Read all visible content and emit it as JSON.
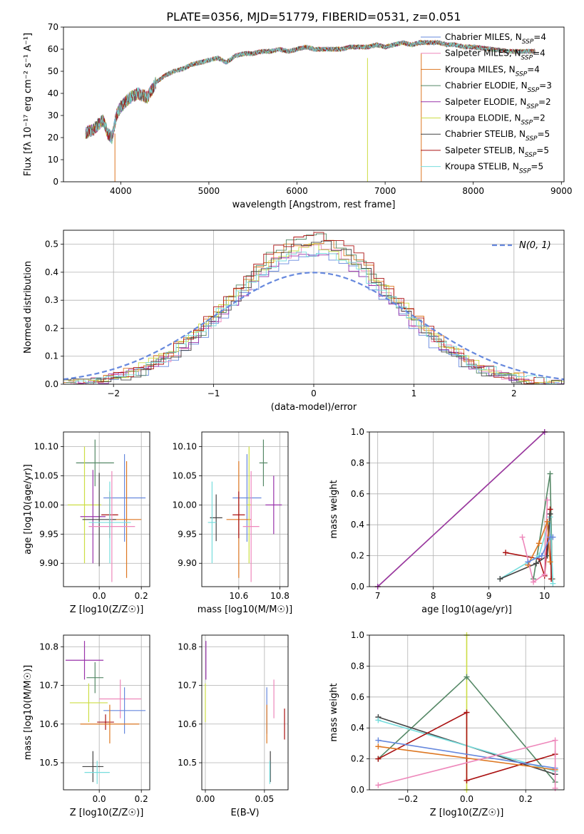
{
  "figure_title": "PLATE=0356, MJD=51779, FIBERID=0531, z=0.051",
  "colors": {
    "Chabrier MILES": "#6688dd",
    "Salpeter MILES": "#ee88bb",
    "Kroupa MILES": "#dd7722",
    "Chabrier ELODIE": "#558866",
    "Salpeter ELODIE": "#9933aa",
    "Kroupa ELODIE": "#ccdd44",
    "Chabrier STELIB": "#444444",
    "Salpeter STELIB": "#aa1111",
    "Kroupa STELIB": "#77dddd",
    "normal_curve": "#6688dd",
    "grid": "#b0b0b0"
  },
  "chart_data": [
    {
      "id": "spectrum",
      "type": "line",
      "title": "PLATE=0356, MJD=51779, FIBERID=0531, z=0.051",
      "xlabel": "wavelength [Angstrom, rest frame]",
      "ylabel": "Flux [fλ 10⁻¹⁷ erg cm⁻² s⁻¹ A⁻¹]",
      "xlim": [
        3350,
        9030
      ],
      "ylim": [
        0,
        70
      ],
      "xticks": [
        4000,
        5000,
        6000,
        7000,
        8000,
        9000
      ],
      "yticks": [
        0,
        10,
        20,
        30,
        40,
        50,
        60,
        70
      ],
      "grid": false,
      "legend_position": "right",
      "legend": [
        {
          "model": "Chabrier MILES",
          "library": "MILES",
          "imf": "Chabrier",
          "label": "Chabrier MILES, N",
          "sub": "SSP",
          "suffix": "=4"
        },
        {
          "model": "Salpeter MILES",
          "library": "MILES",
          "imf": "Salpeter",
          "label": "Salpeter MILES, N",
          "sub": "SSP",
          "suffix": "=4"
        },
        {
          "model": "Kroupa MILES",
          "library": "MILES",
          "imf": "Kroupa",
          "label": "Kroupa MILES, N",
          "sub": "SSP",
          "suffix": "=4"
        },
        {
          "model": "Chabrier ELODIE",
          "library": "ELODIE",
          "imf": "Chabrier",
          "label": "Chabrier ELODIE, N",
          "sub": "SSP",
          "suffix": "=3"
        },
        {
          "model": "Salpeter ELODIE",
          "library": "ELODIE",
          "imf": "Salpeter",
          "label": "Salpeter ELODIE, N",
          "sub": "SSP",
          "suffix": "=2"
        },
        {
          "model": "Kroupa ELODIE",
          "library": "ELODIE",
          "imf": "Kroupa",
          "label": "Kroupa ELODIE, N",
          "sub": "SSP",
          "suffix": "=2"
        },
        {
          "model": "Chabrier STELIB",
          "library": "STELIB",
          "imf": "Chabrier",
          "label": "Chabrier STELIB, N",
          "sub": "SSP",
          "suffix": "=5"
        },
        {
          "model": "Salpeter STELIB",
          "library": "STELIB",
          "imf": "Salpeter",
          "label": "Salpeter STELIB, N",
          "sub": "SSP",
          "suffix": "=5"
        },
        {
          "model": "Kroupa STELIB",
          "library": "STELIB",
          "imf": "Kroupa",
          "label": "Kroupa STELIB, N",
          "sub": "SSP",
          "suffix": "=5"
        }
      ],
      "envelope": [
        [
          3600,
          22
        ],
        [
          3700,
          24
        ],
        [
          3800,
          28
        ],
        [
          3850,
          22
        ],
        [
          3900,
          20
        ],
        [
          3950,
          30
        ],
        [
          4000,
          34
        ],
        [
          4100,
          38
        ],
        [
          4200,
          40
        ],
        [
          4300,
          38
        ],
        [
          4400,
          45
        ],
        [
          4500,
          48
        ],
        [
          4600,
          50
        ],
        [
          4700,
          51
        ],
        [
          4800,
          53
        ],
        [
          4900,
          54
        ],
        [
          5000,
          55
        ],
        [
          5100,
          56
        ],
        [
          5200,
          54
        ],
        [
          5300,
          57
        ],
        [
          5400,
          58
        ],
        [
          5500,
          58
        ],
        [
          5600,
          59
        ],
        [
          5700,
          59
        ],
        [
          5800,
          60
        ],
        [
          5900,
          59
        ],
        [
          6000,
          60
        ],
        [
          6100,
          61
        ],
        [
          6200,
          60
        ],
        [
          6300,
          60
        ],
        [
          6400,
          60
        ],
        [
          6500,
          60
        ],
        [
          6600,
          61
        ],
        [
          6700,
          61
        ],
        [
          6800,
          61
        ],
        [
          6900,
          62
        ],
        [
          7000,
          61
        ],
        [
          7100,
          62
        ],
        [
          7200,
          63
        ],
        [
          7300,
          62
        ],
        [
          7400,
          63
        ],
        [
          7500,
          63
        ],
        [
          7600,
          63
        ],
        [
          7700,
          62
        ],
        [
          7800,
          62
        ],
        [
          7900,
          61
        ],
        [
          8000,
          61
        ],
        [
          8200,
          60
        ],
        [
          8400,
          59
        ],
        [
          8600,
          59
        ],
        [
          8700,
          59
        ]
      ],
      "absorption_dips": [
        {
          "x": 3934,
          "y": 0
        },
        {
          "x": 6800,
          "y": 0
        },
        {
          "x": 7410,
          "y": 0
        }
      ]
    },
    {
      "id": "residuals",
      "type": "step",
      "xlabel": "(data-model)/error",
      "ylabel": "Normed distribution",
      "xlim": [
        -2.5,
        2.5
      ],
      "ylim": [
        0,
        0.55
      ],
      "xticks": [
        -2,
        -1,
        0,
        1,
        2
      ],
      "yticks": [
        0.0,
        0.1,
        0.2,
        0.3,
        0.4,
        0.5
      ],
      "grid": true,
      "legend_position": "top-right",
      "normal_label": "N(0, 1)",
      "bin_width": 0.1,
      "amplitude_range": [
        0.47,
        0.53
      ]
    },
    {
      "id": "age-vs-Z",
      "type": "scatter",
      "xlabel": "Z [log10(Z/Z☉)]",
      "ylabel": "age  [log10(age/yr)]",
      "xlim": [
        -0.17,
        0.24
      ],
      "ylim": [
        9.86,
        10.125
      ],
      "xticks": [
        0.0,
        0.2
      ],
      "yticks": [
        9.9,
        9.95,
        10.0,
        10.05,
        10.1
      ],
      "grid": true,
      "points": [
        {
          "model": "Chabrier ELODIE",
          "x": -0.02,
          "xerr": 0.09,
          "y": 10.072,
          "yerr": 0.04
        },
        {
          "model": "Chabrier MILES",
          "x": 0.12,
          "xerr": 0.1,
          "y": 10.012,
          "yerr": 0.075
        },
        {
          "model": "Kroupa MILES",
          "x": 0.13,
          "xerr": 0.07,
          "y": 9.975,
          "yerr": 0.1
        },
        {
          "model": "Kroupa ELODIE",
          "x": -0.07,
          "xerr": 0.08,
          "y": 10.0,
          "yerr": 0.1
        },
        {
          "model": "Salpeter ELODIE",
          "x": -0.03,
          "xerr": 0.06,
          "y": 9.98,
          "yerr": 0.08
        },
        {
          "model": "Salpeter STELIB",
          "x": 0.05,
          "xerr": 0.04,
          "y": 9.983,
          "yerr": 0.04
        },
        {
          "model": "Chabrier STELIB",
          "x": 0.0,
          "xerr": 0.08,
          "y": 9.975,
          "yerr": 0.08
        },
        {
          "model": "Salpeter MILES",
          "x": 0.06,
          "xerr": 0.11,
          "y": 9.963,
          "yerr": 0.095
        },
        {
          "model": "Kroupa STELIB",
          "x": 0.05,
          "xerr": 0.1,
          "y": 9.97,
          "yerr": 0.07
        }
      ]
    },
    {
      "id": "age-vs-mass",
      "type": "scatter",
      "xlabel": "mass [log10(M/M☉)]",
      "ylabel": "",
      "xlim": [
        10.42,
        10.84
      ],
      "ylim": [
        9.86,
        10.125
      ],
      "xticks": [
        10.6,
        10.8
      ],
      "yticks": [
        9.9,
        9.95,
        10.0,
        10.05,
        10.1
      ],
      "grid": true,
      "points": [
        {
          "model": "Chabrier ELODIE",
          "x": 10.72,
          "xerr": 0.02,
          "y": 10.072,
          "yerr": 0.04
        },
        {
          "model": "Chabrier MILES",
          "x": 10.64,
          "xerr": 0.07,
          "y": 10.012,
          "yerr": 0.075
        },
        {
          "model": "Kroupa MILES",
          "x": 10.6,
          "xerr": 0.06,
          "y": 9.975,
          "yerr": 0.1
        },
        {
          "model": "Kroupa ELODIE",
          "x": 10.65,
          "xerr": 0.01,
          "y": 10.0,
          "yerr": 0.1
        },
        {
          "model": "Salpeter ELODIE",
          "x": 10.77,
          "xerr": 0.04,
          "y": 10.0,
          "yerr": 0.05
        },
        {
          "model": "Salpeter STELIB",
          "x": 10.6,
          "xerr": 0.03,
          "y": 9.983,
          "yerr": 0.04
        },
        {
          "model": "Chabrier STELIB",
          "x": 10.49,
          "xerr": 0.03,
          "y": 9.978,
          "yerr": 0.04
        },
        {
          "model": "Salpeter MILES",
          "x": 10.66,
          "xerr": 0.04,
          "y": 9.963,
          "yerr": 0.095
        },
        {
          "model": "Kroupa STELIB",
          "x": 10.47,
          "xerr": 0.02,
          "y": 9.97,
          "yerr": 0.07
        }
      ]
    },
    {
      "id": "mass-weight-vs-age",
      "type": "line",
      "xlabel": "age  [log10(age/yr)]",
      "ylabel": "mass weight",
      "xlim": [
        6.85,
        10.35
      ],
      "ylim": [
        0,
        1.0
      ],
      "xticks": [
        7,
        8,
        9,
        10
      ],
      "yticks": [
        0.0,
        0.2,
        0.4,
        0.6,
        0.8,
        1.0
      ],
      "grid": true,
      "series": [
        {
          "model": "Kroupa ELODIE",
          "x": [
            7.0,
            10.0
          ],
          "y": [
            0.0,
            1.0
          ]
        },
        {
          "model": "Salpeter ELODIE",
          "x": [
            7.0,
            10.0
          ],
          "y": [
            0.0,
            1.0
          ]
        },
        {
          "model": "Chabrier ELODIE",
          "x": [
            9.8,
            10.1,
            10.14
          ],
          "y": [
            0.05,
            0.73,
            0.05
          ]
        },
        {
          "model": "Salpeter STELIB",
          "x": [
            9.3,
            9.9,
            10.0,
            10.1,
            10.12
          ],
          "y": [
            0.22,
            0.18,
            0.07,
            0.5,
            0.05
          ]
        },
        {
          "model": "Kroupa STELIB",
          "x": [
            9.2,
            9.9,
            10.1,
            10.15
          ],
          "y": [
            0.05,
            0.2,
            0.45,
            0.02
          ]
        },
        {
          "model": "Chabrier STELIB",
          "x": [
            9.2,
            9.85,
            10.05,
            10.1
          ],
          "y": [
            0.05,
            0.15,
            0.2,
            0.47
          ]
        },
        {
          "model": "Salpeter MILES",
          "x": [
            9.6,
            9.8,
            10.0,
            10.05
          ],
          "y": [
            0.32,
            0.03,
            0.08,
            0.56
          ]
        },
        {
          "model": "Kroupa MILES",
          "x": [
            9.7,
            9.9,
            10.05,
            10.1
          ],
          "y": [
            0.14,
            0.28,
            0.42,
            0.16
          ]
        },
        {
          "model": "Chabrier MILES",
          "x": [
            9.7,
            9.95,
            10.1,
            10.15
          ],
          "y": [
            0.16,
            0.2,
            0.32,
            0.32
          ]
        }
      ]
    },
    {
      "id": "mass-vs-Z",
      "type": "scatter",
      "xlabel": "Z [log10(Z/Z☉)]",
      "ylabel": "mass [log10(M/M☉)]",
      "xlim": [
        -0.17,
        0.24
      ],
      "ylim": [
        10.43,
        10.83
      ],
      "xticks": [
        0.0,
        0.2
      ],
      "yticks": [
        10.5,
        10.6,
        10.7,
        10.8
      ],
      "grid": true,
      "points": [
        {
          "model": "Salpeter ELODIE",
          "x": -0.07,
          "xerr": 0.09,
          "y": 10.765,
          "yerr": 0.05
        },
        {
          "model": "Chabrier ELODIE",
          "x": -0.02,
          "xerr": 0.04,
          "y": 10.72,
          "yerr": 0.04
        },
        {
          "model": "Salpeter MILES",
          "x": 0.1,
          "xerr": 0.1,
          "y": 10.665,
          "yerr": 0.05
        },
        {
          "model": "Kroupa ELODIE",
          "x": -0.05,
          "xerr": 0.09,
          "y": 10.655,
          "yerr": 0.05
        },
        {
          "model": "Chabrier MILES",
          "x": 0.12,
          "xerr": 0.1,
          "y": 10.635,
          "yerr": 0.06
        },
        {
          "model": "Salpeter STELIB",
          "x": 0.03,
          "xerr": 0.04,
          "y": 10.605,
          "yerr": 0.02
        },
        {
          "model": "Kroupa MILES",
          "x": 0.05,
          "xerr": 0.14,
          "y": 10.6,
          "yerr": 0.05
        },
        {
          "model": "Chabrier STELIB",
          "x": -0.03,
          "xerr": 0.05,
          "y": 10.49,
          "yerr": 0.04
        },
        {
          "model": "Kroupa STELIB",
          "x": -0.01,
          "xerr": 0.06,
          "y": 10.475,
          "yerr": 0.03
        }
      ]
    },
    {
      "id": "mass-vs-EBV",
      "type": "scatter",
      "xlabel": "E(B-V)",
      "ylabel": "",
      "xlim": [
        -0.003,
        0.07
      ],
      "ylim": [
        10.43,
        10.83
      ],
      "xticks": [
        0.0,
        0.05
      ],
      "yticks": [
        10.5,
        10.6,
        10.7,
        10.8
      ],
      "grid": true,
      "points": [
        {
          "model": "Salpeter ELODIE",
          "x": 0.0005,
          "y": 10.765,
          "yerr": 0.05
        },
        {
          "model": "Kroupa ELODIE",
          "x": 0.0,
          "y": 10.655,
          "yerr": 0.05
        },
        {
          "model": "Salpeter MILES",
          "x": 0.058,
          "y": 10.665,
          "yerr": 0.05
        },
        {
          "model": "Chabrier MILES",
          "x": 0.052,
          "y": 10.635,
          "yerr": 0.06
        },
        {
          "model": "Kroupa MILES",
          "x": 0.052,
          "y": 10.6,
          "yerr": 0.05
        },
        {
          "model": "Salpeter STELIB",
          "x": 0.067,
          "y": 10.6,
          "yerr": 0.04
        },
        {
          "model": "Chabrier STELIB",
          "x": 0.055,
          "y": 10.49,
          "yerr": 0.04
        },
        {
          "model": "Kroupa STELIB",
          "x": 0.0545,
          "y": 10.475,
          "yerr": 0.03
        }
      ]
    },
    {
      "id": "mass-weight-vs-Z",
      "type": "line",
      "xlabel": "Z [log10(Z/Z☉)]",
      "ylabel": "mass weight",
      "xlim": [
        -0.33,
        0.33
      ],
      "ylim": [
        0,
        1.0
      ],
      "xticks": [
        -0.2,
        0.0,
        0.2
      ],
      "yticks": [
        0.0,
        0.2,
        0.4,
        0.6,
        0.8,
        1.0
      ],
      "grid": true,
      "series": [
        {
          "model": "Kroupa ELODIE",
          "x": [
            0.0,
            0.0
          ],
          "y": [
            0.0,
            1.0
          ]
        },
        {
          "model": "Chabrier ELODIE",
          "x": [
            -0.3,
            0.0,
            0.3
          ],
          "y": [
            0.2,
            0.73,
            0.05
          ]
        },
        {
          "model": "Chabrier STELIB",
          "x": [
            -0.3,
            0.3
          ],
          "y": [
            0.47,
            0.1
          ]
        },
        {
          "model": "Kroupa STELIB",
          "x": [
            -0.3,
            0.3
          ],
          "y": [
            0.45,
            0.12
          ]
        },
        {
          "model": "Salpeter STELIB",
          "x": [
            -0.3,
            0.0,
            0.0,
            0.3
          ],
          "y": [
            0.2,
            0.5,
            0.06,
            0.23
          ]
        },
        {
          "model": "Chabrier MILES",
          "x": [
            -0.3,
            0.3
          ],
          "y": [
            0.32,
            0.14
          ]
        },
        {
          "model": "Kroupa MILES",
          "x": [
            -0.3,
            0.3
          ],
          "y": [
            0.28,
            0.13
          ]
        },
        {
          "model": "Salpeter MILES",
          "x": [
            -0.3,
            0.3,
            0.3
          ],
          "y": [
            0.03,
            0.32,
            0.01
          ]
        }
      ]
    }
  ]
}
